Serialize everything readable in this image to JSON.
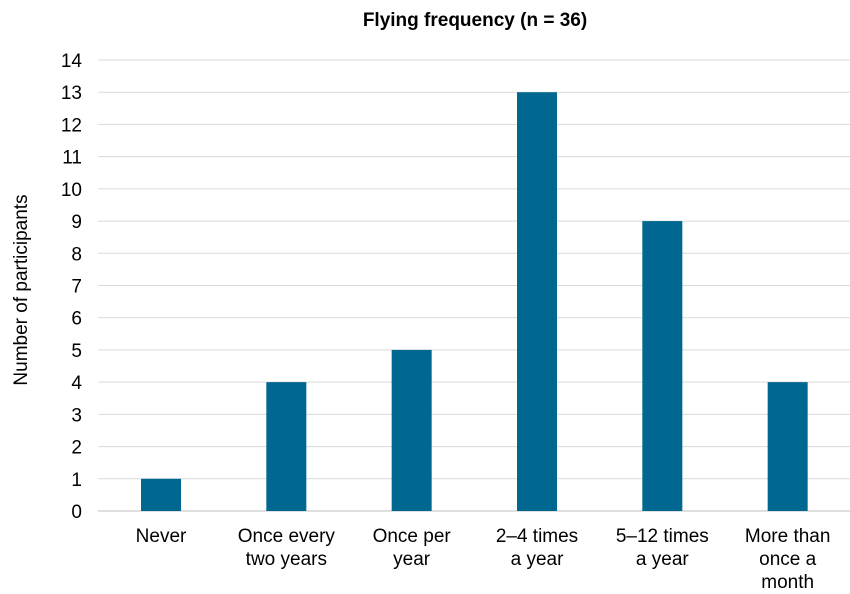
{
  "chart_data": {
    "type": "bar",
    "title": "Flying frequency (n = 36)",
    "ylabel": "Number of participants",
    "xlabel": "",
    "ylim": [
      0,
      14
    ],
    "yticks": [
      0,
      1,
      2,
      3,
      4,
      5,
      6,
      7,
      8,
      9,
      10,
      11,
      12,
      13,
      14
    ],
    "grid": true,
    "legend": "none",
    "categories": [
      [
        "Never"
      ],
      [
        "Once every",
        "two years"
      ],
      [
        "Once per",
        "year"
      ],
      [
        "2–4 times",
        "a year"
      ],
      [
        "5–12 times",
        "a year"
      ],
      [
        "More than",
        "once a",
        "month"
      ]
    ],
    "values": [
      1,
      4,
      5,
      13,
      9,
      4
    ],
    "bar_color": "#006790",
    "grid_color": "#d9d9d9"
  }
}
